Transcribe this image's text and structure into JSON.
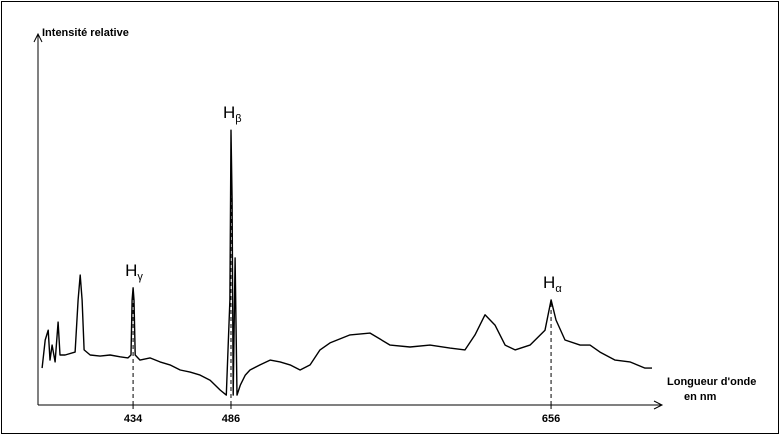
{
  "chart_data": {
    "type": "line",
    "y_label": "Intensité relative",
    "x_label": [
      "Longueur d'onde",
      "en nm"
    ],
    "color": "#000000",
    "x": [
      385.7,
      387.3,
      388.9,
      389.9,
      391.0,
      392.6,
      394.2,
      395.2,
      397.9,
      403.2,
      404.8,
      405.9,
      406.9,
      408.0,
      411.2,
      416.5,
      421.8,
      427.1,
      431.3,
      432.9,
      433.5,
      434,
      434.5,
      435.1,
      437.7,
      443.0,
      448.3,
      453.6,
      459.0,
      464.3,
      469.6,
      474.9,
      480.2,
      483.5,
      485.4,
      486,
      486.6,
      487.2,
      488.2,
      489.2,
      491.0,
      493.6,
      496.1,
      501.4,
      506.8,
      512.1,
      517.4,
      522.7,
      528.0,
      533.3,
      538.6,
      549.2,
      559.9,
      570.5,
      581.1,
      591.7,
      602.3,
      610.3,
      615.6,
      620.9,
      626.2,
      631.6,
      636.9,
      644.8,
      652.8,
      656,
      658.6,
      663.4,
      671.4,
      676.7,
      682.0,
      690.0,
      697.9,
      705.9,
      709.6
    ],
    "values": [
      10.1,
      17.8,
      20.5,
      12.3,
      16.4,
      11.8,
      22.7,
      13.7,
      13.7,
      14.5,
      28.8,
      35.6,
      28.8,
      15.1,
      13.7,
      13.4,
      13.7,
      13.2,
      12.9,
      13.7,
      28.8,
      32.1,
      28.8,
      13.7,
      12.3,
      12.9,
      11.8,
      11.0,
      9.6,
      9.0,
      8.2,
      6.8,
      4.1,
      2.7,
      28.8,
      75.3,
      56.2,
      2.7,
      40.3,
      2.7,
      5.5,
      8.2,
      9.6,
      11.0,
      12.3,
      11.8,
      11.0,
      9.6,
      11.0,
      15.1,
      17.0,
      19.2,
      19.7,
      16.4,
      15.9,
      16.4,
      15.6,
      15.1,
      19.2,
      24.7,
      21.9,
      16.4,
      15.1,
      16.4,
      20.5,
      28.8,
      23.3,
      17.8,
      16.4,
      16.4,
      14.5,
      12.3,
      11.8,
      10.1,
      10.1
    ],
    "xlim": [
      383.5,
      712.8
    ],
    "xticks": [
      434,
      486,
      656
    ],
    "ylim": [
      0,
      100
    ],
    "annotations": [
      {
        "label": "H",
        "subscript": "γ"
      },
      {
        "label": "H",
        "subscript": "β"
      },
      {
        "label": "H",
        "subscript": "α"
      }
    ]
  }
}
